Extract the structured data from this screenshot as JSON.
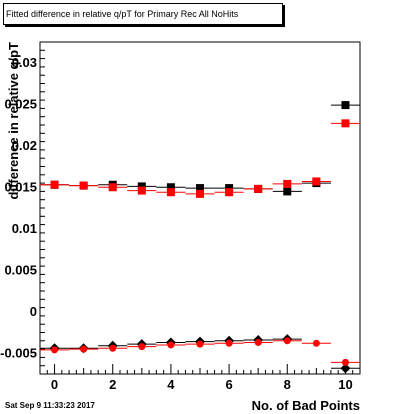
{
  "chart_data": {
    "type": "scatter",
    "title": "Fitted difference in relative q/pT for Primary Rec All NoHits",
    "xlabel": "No. of Bad Points",
    "ylabel": "difference in relative q/pT",
    "xlim": [
      -0.5,
      10.5
    ],
    "ylim": [
      -0.0075,
      0.0325
    ],
    "x_ticks": [
      0,
      2,
      4,
      6,
      8,
      10
    ],
    "y_ticks": [
      -0.005,
      0,
      0.005,
      0.01,
      0.015,
      0.02,
      0.025,
      0.03
    ],
    "y_tick_labels": [
      "-0.005",
      "0",
      "0.005",
      "0.01",
      "0.015",
      "0.02",
      "0.025",
      "0.03"
    ],
    "grid": false,
    "series": [
      {
        "marker": "square",
        "color": "#000000",
        "x": [
          0,
          1,
          2,
          3,
          4,
          5,
          6,
          7,
          8,
          9,
          10
        ],
        "y": [
          0.0153,
          0.0152,
          0.0153,
          0.0151,
          0.015,
          0.0149,
          0.0149,
          0.0148,
          0.0145,
          0.0155,
          0.0249
        ]
      },
      {
        "marker": "square",
        "color": "#ff0000",
        "x": [
          0,
          1,
          2,
          3,
          4,
          5,
          6,
          7,
          8,
          9,
          10
        ],
        "y": [
          0.0153,
          0.0152,
          0.015,
          0.0146,
          0.0144,
          0.0142,
          0.0144,
          0.0148,
          0.0154,
          0.0157,
          0.0227
        ]
      },
      {
        "marker": "diamond",
        "color": "#000000",
        "x": [
          0,
          1,
          2,
          3,
          4,
          5,
          6,
          7,
          8,
          10
        ],
        "y": [
          -0.0044,
          -0.0044,
          -0.0041,
          -0.0039,
          -0.0037,
          -0.0036,
          -0.0035,
          -0.0034,
          -0.0033,
          -0.0068
        ]
      },
      {
        "marker": "circle",
        "color": "#ff0000",
        "x": [
          0,
          1,
          2,
          3,
          4,
          5,
          6,
          7,
          8,
          9,
          10
        ],
        "y": [
          -0.0046,
          -0.0045,
          -0.0044,
          -0.0042,
          -0.004,
          -0.0039,
          -0.0038,
          -0.0037,
          -0.0035,
          -0.0038,
          -0.0061
        ]
      }
    ]
  },
  "footer": {
    "timestamp": "Sat Sep  9 11:33:23 2017"
  }
}
